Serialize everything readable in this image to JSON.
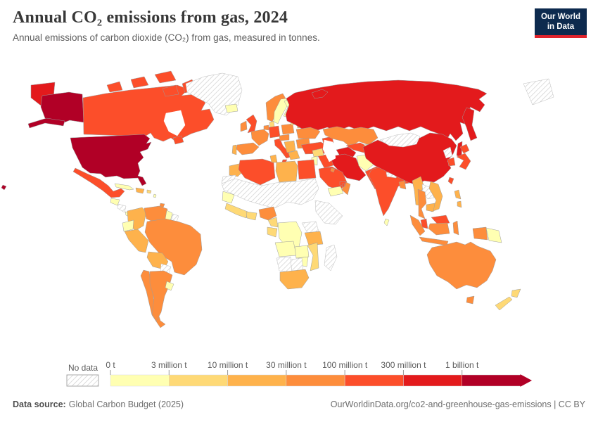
{
  "header": {
    "title": "Annual CO₂ emissions from gas, 2024",
    "subtitle": "Annual emissions of carbon dioxide (CO₂) from gas, measured in tonnes."
  },
  "logo": {
    "line1": "Our World",
    "line2": "in Data",
    "bg": "#0d2a4e",
    "accent": "#e0232c"
  },
  "footer": {
    "source_label": "Data source:",
    "source_text": "Global Carbon Budget (2025)",
    "right_text": "OurWorldinData.org/co2-and-greenhouse-gas-emissions | CC BY"
  },
  "chart_data": {
    "type": "choropleth",
    "title": "Annual CO₂ emissions from gas, 2024",
    "unit": "tonnes",
    "year": 2024,
    "legend": {
      "no_data_label": "No data",
      "tick_labels": [
        "0 t",
        "3 million t",
        "10 million t",
        "30 million t",
        "100 million t",
        "300 million t",
        "1 billion t"
      ],
      "bin_colors": [
        "#ffffb2",
        "#fed976",
        "#feb24c",
        "#fd8d3c",
        "#fc4e2a",
        "#e31a1c",
        "#b10026"
      ],
      "no_data_pattern": "diagonal-hatch"
    },
    "countries": {
      "united-states": 6,
      "canada": 4,
      "greenland": "no-data",
      "iceland": 0,
      "mexico": 4,
      "guatemala": 0,
      "nicaragua": "no-data",
      "panama": 0,
      "cuba": 0,
      "dominican-republic": 2,
      "puerto-rico": 1,
      "lesser-antilles": 0,
      "trinidad-and-tobago": 3,
      "colombia": 2,
      "venezuela": 3,
      "guyana": 0,
      "suriname": "no-data",
      "ecuador": 0,
      "peru": 2,
      "brazil": 3,
      "bolivia": 2,
      "paraguay": "no-data",
      "chile": 3,
      "argentina": 3,
      "uruguay": 0,
      "norway": 3,
      "sweden": 0,
      "finland": 0,
      "united-kingdom": 4,
      "ireland": 3,
      "denmark": 1,
      "germany": 4,
      "netherlands": 3,
      "france": 3,
      "spain": 3,
      "portugal": 2,
      "italy": 4,
      "austria": 3,
      "poland": 3,
      "baltic-states": 1,
      "belarus": 2,
      "ukraine": 3,
      "romania": 3,
      "balkans": 2,
      "greece": 2,
      "turkey": 4,
      "caucasus": 4,
      "russia": 5,
      "kazakhstan": 3,
      "uzbekistan": 4,
      "turkmenistan": 5,
      "kyrgyzstan": 0,
      "iran": 5,
      "afghanistan": 0,
      "pakistan": 4,
      "iraq": 4,
      "syria": 1,
      "jordan": 0,
      "saudi-arabia": 4,
      "yemen": 0,
      "oman": 3,
      "united-arab-emirates": 4,
      "kuwait": 3,
      "qatar": 4,
      "india": 4,
      "nepal": "no-data",
      "bangladesh": 3,
      "sri-lanka": 0,
      "china": 5,
      "mongolia": "no-data",
      "north-korea": "no-data",
      "south-korea": 4,
      "japan": 4,
      "taiwan": 4,
      "myanmar": 2,
      "laos": "no-data",
      "thailand": 3,
      "vietnam": 2,
      "cambodia": 2,
      "malaysia": 4,
      "indonesia": 3,
      "philippines": 2,
      "papua-new-guinea": 0,
      "australia": 3,
      "new-zealand": 1,
      "morocco": 2,
      "western-sahara": "no-data",
      "algeria": 4,
      "tunisia": 2,
      "libya": 2,
      "egypt": 4,
      "sahara-region": "no-data",
      "horn-of-africa": "no-data",
      "senegal": 0,
      "guinea-coast": 1,
      "ghana": 1,
      "nigeria": 3,
      "cameroon": 1,
      "gabon": 1,
      "democratic-republic-of-congo": 0,
      "east-africa": "no-data",
      "tanzania": 2,
      "angola": 0,
      "zambia": 0,
      "mozambique": 1,
      "zimbabwe": 0,
      "namibia": "no-data",
      "botswana": "no-data",
      "south-africa": 2,
      "madagascar": "no-data",
      "arctic-islands": "no-data"
    }
  }
}
